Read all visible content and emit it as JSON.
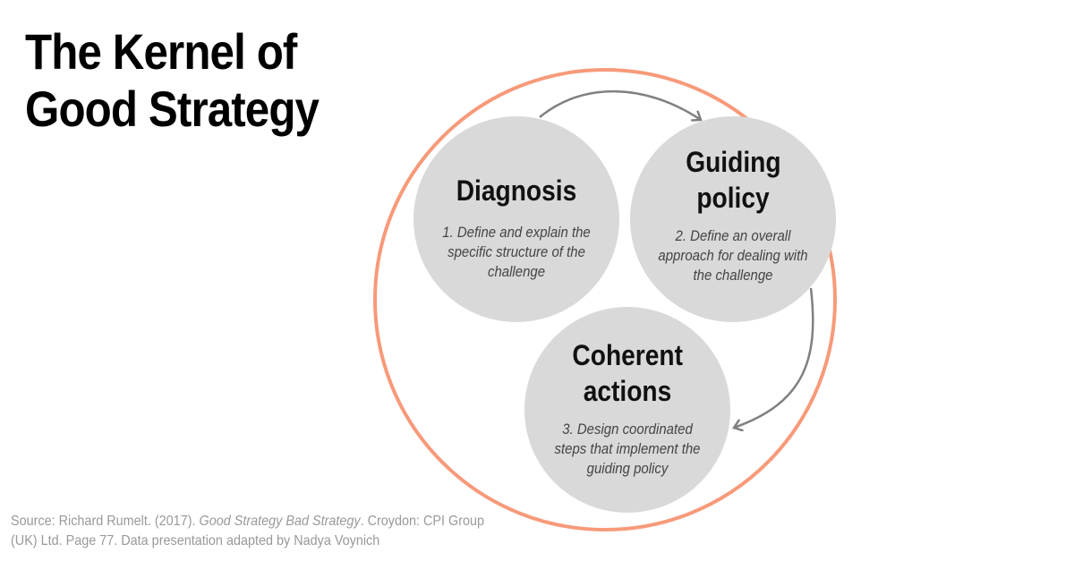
{
  "title": "The Kernel of Good Strategy",
  "colors": {
    "outer_ring": "#f79a7a",
    "circle_fill": "#d9d9d9",
    "arrow": "#808080"
  },
  "circles": [
    {
      "heading": "Diagnosis",
      "desc": "1. Define and explain the specific structure of the challenge"
    },
    {
      "heading": "Guiding policy",
      "desc": "2. Define an overall approach for dealing with the challenge"
    },
    {
      "heading": "Coherent actions",
      "desc": "3. Design coordinated steps that implement the guiding policy"
    }
  ],
  "source": {
    "prefix": "Source: Richard Rumelt. (2017). ",
    "book": "Good Strategy Bad Strategy",
    "suffix": ". Croydon: CPI Group (UK) Ltd. Page 77. Data presentation adapted by Nadya Voynich"
  }
}
